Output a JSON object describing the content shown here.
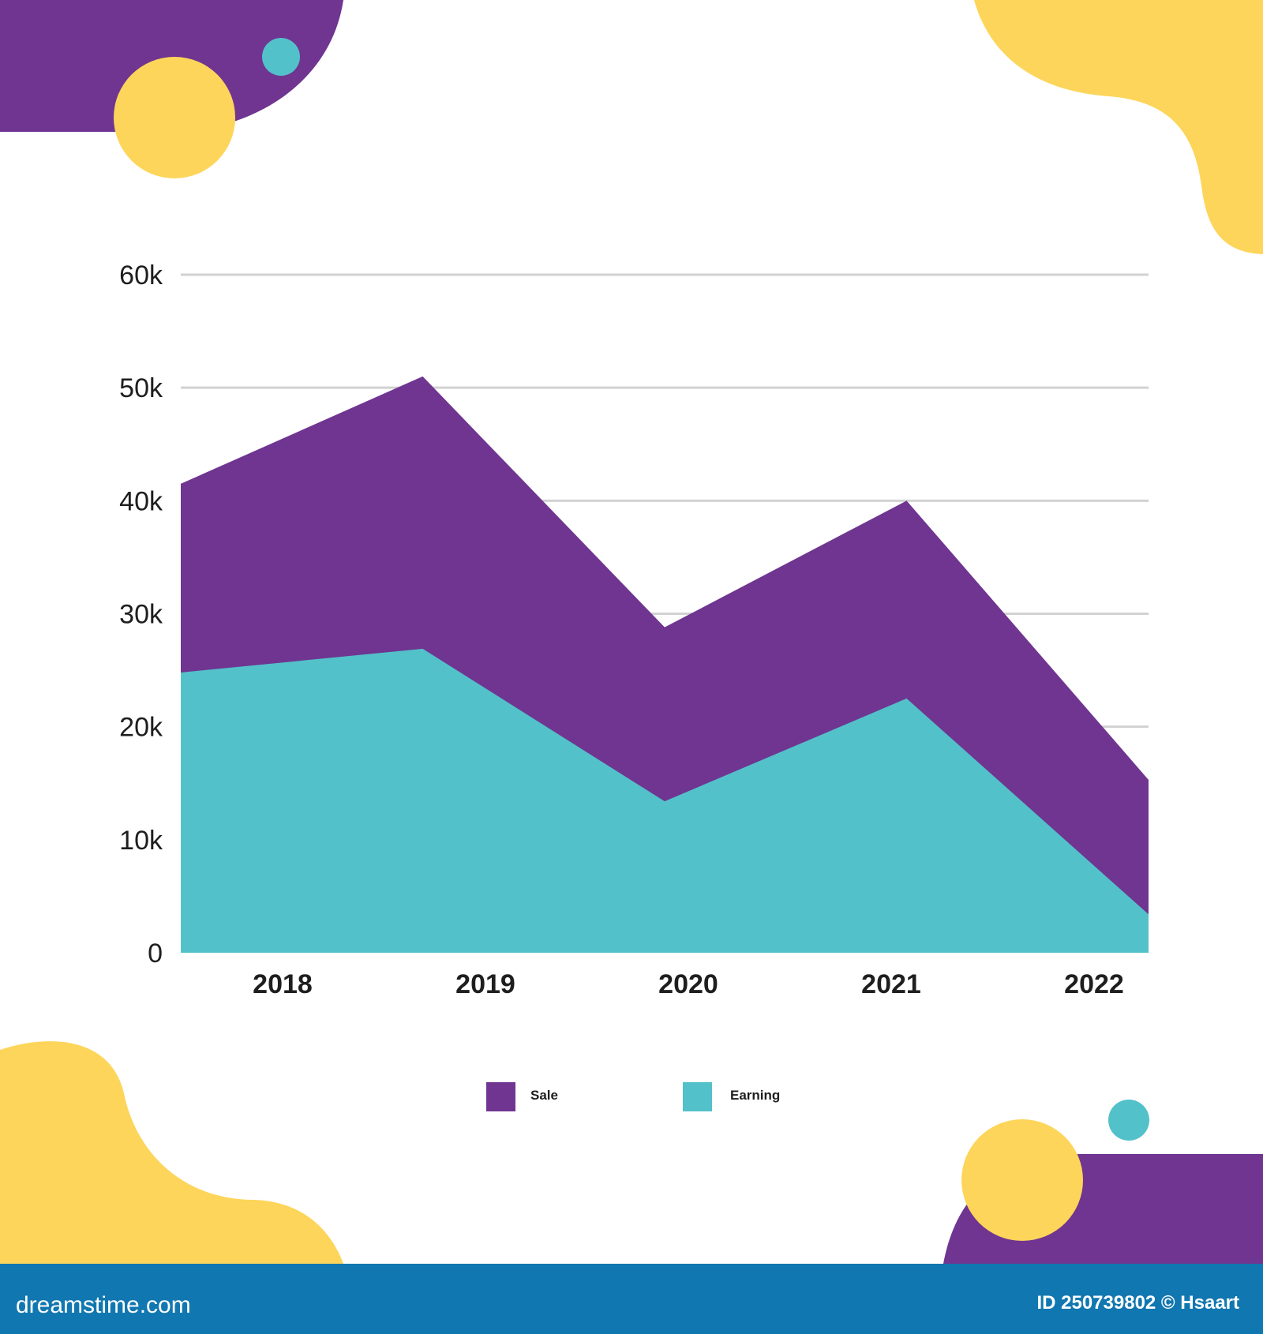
{
  "colors": {
    "sale": "#6f3591",
    "earning": "#53c1c9",
    "yellow": "#fdd55a",
    "footer": "#1177b0",
    "grid": "#d2d2d2"
  },
  "chart_data": {
    "type": "area",
    "categories": [
      "2018",
      "2019",
      "2020",
      "2021",
      "2022"
    ],
    "series": [
      {
        "name": "Sale",
        "values": [
          41.5,
          51,
          28.8,
          40,
          15.3
        ]
      },
      {
        "name": "Earning",
        "values": [
          24.8,
          26.9,
          13.4,
          22.5,
          3.4
        ]
      }
    ],
    "yticks": [
      0,
      10,
      20,
      30,
      40,
      50,
      60
    ],
    "ytick_labels": [
      "0",
      "10k",
      "20k",
      "30k",
      "40k",
      "50k",
      "60k"
    ],
    "ylim": [
      0,
      60
    ],
    "grid": true,
    "legend_placement": "bottom-center",
    "title": "",
    "xlabel": "",
    "ylabel": ""
  },
  "footer": {
    "brand": "dreamstime.com",
    "credit": "ID 250739802 © Hsaart"
  }
}
